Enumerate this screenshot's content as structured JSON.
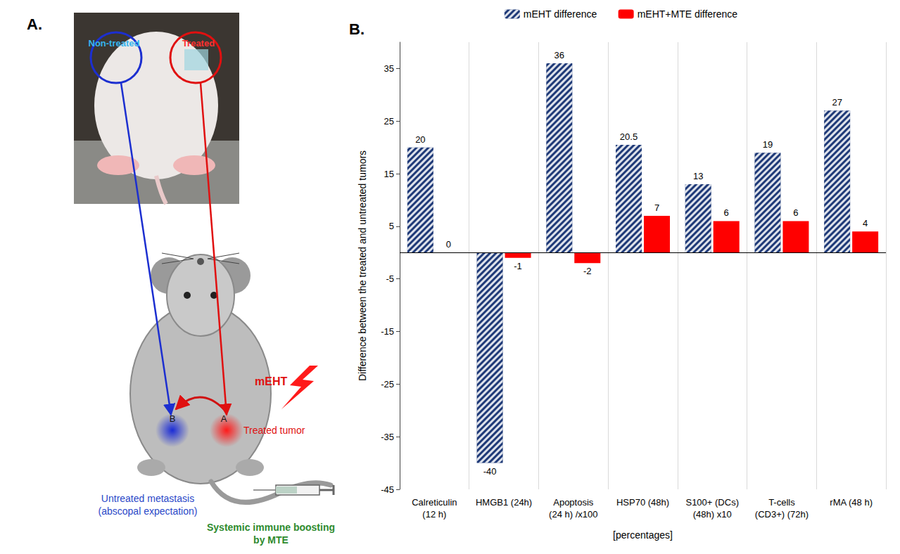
{
  "diagram": {
    "panel_label": "A.",
    "photo": {
      "left_label": "Non-treated",
      "right_label": "Treated"
    },
    "mouse": {
      "spot_b": "B",
      "spot_a": "A",
      "treatment": "mEHT",
      "treated_label": "Treated tumor",
      "untreated_label": "Untreated metastasis (abscopal expectation)",
      "injection_label": "Systemic immune boosting by MTE"
    }
  },
  "chart_data": {
    "type": "bar",
    "panel_label": "B.",
    "y_label": "Difference between the treated and untreated tumors",
    "x_label": "[percentages]",
    "categories": [
      "Calreticulin (12 h)",
      "HMGB1 (24h)",
      "Apoptosis (24 h) /x100",
      "HSP70 (48h)",
      "S100+ (DCs) (48h) x10",
      "T-cells (CD3+) (72h)",
      "rMA (48 h)"
    ],
    "series": [
      {
        "name": "mEHT difference",
        "color": "#1f3a78",
        "values": [
          20,
          -40,
          36,
          20.5,
          13,
          19,
          27
        ]
      },
      {
        "name": "mEHT+MTE difference",
        "color": "#ff0000",
        "values": [
          0,
          -1,
          -2,
          7,
          6,
          6,
          4
        ]
      }
    ],
    "ylim": [
      -45,
      40
    ],
    "yticks": [
      -45,
      -35,
      -25,
      -15,
      -5,
      5,
      15,
      25,
      35
    ],
    "grid": true,
    "legend": "top",
    "data_labels": true
  }
}
